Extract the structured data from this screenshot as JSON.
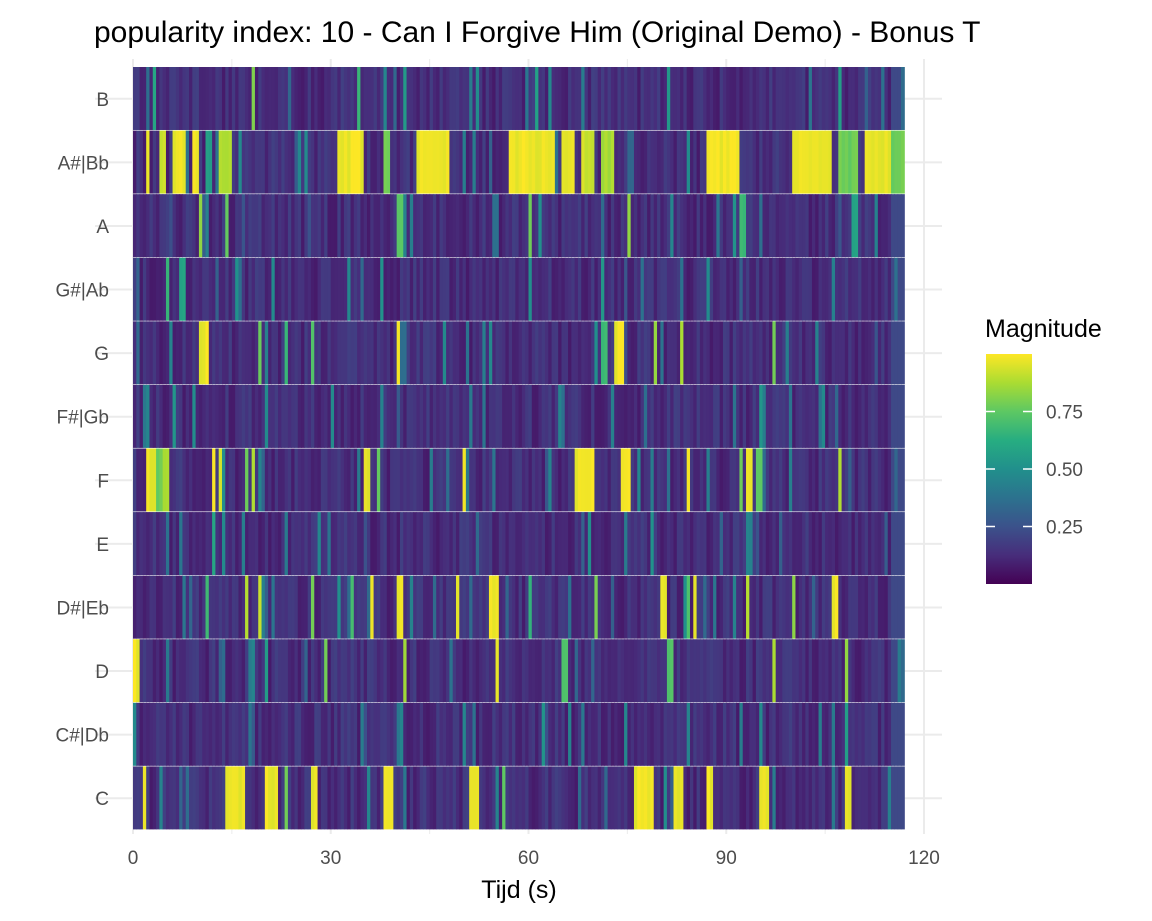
{
  "chart_data": {
    "type": "heatmap",
    "title": "popularity index:  10  -  Can I Forgive Him (Original Demo) - Bonus T",
    "xlabel": "Tijd (s)",
    "ylabel": "",
    "xlim": [
      0,
      117
    ],
    "x_axis_range": [
      0,
      120
    ],
    "x_ticks": [
      0,
      30,
      60,
      90,
      120
    ],
    "y_categories": [
      "C",
      "C#|Db",
      "D",
      "D#|Eb",
      "E",
      "F",
      "F#|Gb",
      "G",
      "G#|Ab",
      "A",
      "A#|Bb",
      "B"
    ],
    "grid": true,
    "legend": {
      "title": "Magnitude",
      "position": "right",
      "ticks": [
        0.25,
        0.5,
        0.75
      ],
      "tick_labels": [
        "0.25",
        "0.50",
        "0.75"
      ],
      "range": [
        0,
        1
      ]
    },
    "colors": {
      "low": "#440154",
      "mid": "#21908C",
      "high": "#FDE725",
      "grid": "#ebebeb",
      "background": "#ffffff"
    },
    "time_step_seconds": 0.5,
    "base_level": 0.07,
    "end_fade": {
      "start": 115,
      "end": 117
    },
    "high_segments": {
      "B": [
        [
          3,
          3.5,
          0.6
        ],
        [
          18,
          18.5,
          0.85
        ],
        [
          34,
          34.5,
          0.7
        ],
        [
          41,
          41.5,
          0.55
        ],
        [
          61,
          61.5,
          0.6
        ],
        [
          81,
          81.5,
          0.55
        ],
        [
          107,
          107.5,
          0.6
        ]
      ],
      "A#|Bb": [
        [
          2,
          2.5,
          1
        ],
        [
          4,
          5,
          0.95
        ],
        [
          6,
          8,
          1
        ],
        [
          9,
          10,
          1
        ],
        [
          11,
          12,
          0.6
        ],
        [
          13,
          15,
          0.9
        ],
        [
          31,
          35,
          1
        ],
        [
          38,
          39,
          0.8
        ],
        [
          43,
          48,
          1
        ],
        [
          57,
          64,
          1
        ],
        [
          65,
          67,
          1
        ],
        [
          68,
          70,
          0.95
        ],
        [
          71,
          73,
          0.9
        ],
        [
          87,
          92,
          1
        ],
        [
          100,
          106,
          1
        ],
        [
          107,
          110,
          0.8
        ],
        [
          111,
          115,
          1
        ],
        [
          115,
          117,
          0.8
        ]
      ],
      "A": [
        [
          10,
          10.5,
          0.85
        ],
        [
          14,
          14.5,
          0.8
        ],
        [
          40,
          41,
          0.75
        ],
        [
          60,
          60.5,
          0.8
        ],
        [
          75,
          75.5,
          0.85
        ],
        [
          92,
          93,
          0.7
        ],
        [
          109,
          110,
          0.6
        ]
      ],
      "G#|Ab": [
        [
          5,
          5.5,
          0.7
        ],
        [
          7,
          8,
          0.6
        ],
        [
          21,
          21.5,
          0.5
        ],
        [
          60,
          60.5,
          0.5
        ],
        [
          71,
          71.5,
          0.55
        ],
        [
          87,
          87.5,
          0.5
        ]
      ],
      "G": [
        [
          10,
          11.5,
          1
        ],
        [
          19,
          19.5,
          0.8
        ],
        [
          23,
          23.5,
          0.7
        ],
        [
          27,
          27.5,
          0.75
        ],
        [
          40,
          40.5,
          1
        ],
        [
          71,
          72,
          0.7
        ],
        [
          73,
          74.5,
          1
        ],
        [
          79,
          79.5,
          0.85
        ],
        [
          83,
          83.5,
          0.9
        ],
        [
          97,
          97.5,
          0.8
        ]
      ],
      "F#|Gb": [
        [
          2,
          2.5,
          0.5
        ],
        [
          6,
          6.5,
          0.55
        ],
        [
          20,
          20.5,
          0.5
        ],
        [
          30,
          30.5,
          0.5
        ],
        [
          51,
          51.5,
          0.45
        ],
        [
          95,
          95.5,
          0.55
        ]
      ],
      "F": [
        [
          2,
          3.5,
          1
        ],
        [
          3.5,
          4.5,
          0.8
        ],
        [
          4.5,
          5.5,
          0.9
        ],
        [
          12,
          12.5,
          1
        ],
        [
          13,
          13.5,
          0.95
        ],
        [
          17,
          17.5,
          0.8
        ],
        [
          18,
          18.5,
          0.9
        ],
        [
          35,
          36,
          1
        ],
        [
          37,
          37.5,
          0.8
        ],
        [
          50,
          50.5,
          1
        ],
        [
          67,
          70,
          1
        ],
        [
          74,
          75.5,
          1
        ],
        [
          84,
          84.5,
          1
        ],
        [
          92,
          92.5,
          0.8
        ],
        [
          93,
          94,
          1
        ],
        [
          94.5,
          95.5,
          0.8
        ],
        [
          107,
          107.5,
          0.9
        ]
      ],
      "E": [
        [
          12,
          12.5,
          0.6
        ],
        [
          28,
          28.5,
          0.5
        ],
        [
          93,
          93.5,
          0.5
        ]
      ],
      "D#|Eb": [
        [
          11,
          11.5,
          0.7
        ],
        [
          17,
          17.5,
          0.9
        ],
        [
          19,
          19.5,
          0.95
        ],
        [
          27,
          27.5,
          0.8
        ],
        [
          33,
          33.5,
          0.7
        ],
        [
          36,
          36.5,
          1
        ],
        [
          40,
          41,
          1
        ],
        [
          49,
          49.5,
          1
        ],
        [
          54,
          55.5,
          1
        ],
        [
          60,
          60.5,
          0.7
        ],
        [
          70,
          70.5,
          0.8
        ],
        [
          80,
          81,
          1
        ],
        [
          84,
          84.5,
          0.75
        ],
        [
          85,
          85.5,
          1
        ],
        [
          93,
          93.5,
          0.9
        ],
        [
          100,
          100.5,
          0.85
        ],
        [
          106,
          107,
          1
        ]
      ],
      "D": [
        [
          0,
          1,
          1
        ],
        [
          20,
          20.5,
          0.6
        ],
        [
          29,
          29.5,
          0.8
        ],
        [
          41,
          41.5,
          0.9
        ],
        [
          55,
          55.5,
          1
        ],
        [
          65,
          66,
          0.75
        ],
        [
          81,
          82,
          0.75
        ],
        [
          97,
          97.5,
          0.9
        ],
        [
          108,
          108.5,
          0.85
        ]
      ],
      "C#|Db": [
        [
          0,
          0.5,
          0.5
        ],
        [
          50,
          50.5,
          0.5
        ],
        [
          62,
          62.5,
          0.55
        ],
        [
          95,
          95.5,
          0.5
        ],
        [
          108,
          108.5,
          0.6
        ]
      ],
      "C": [
        [
          1.5,
          2,
          1
        ],
        [
          14,
          17,
          1
        ],
        [
          20,
          22,
          1
        ],
        [
          23,
          23.5,
          0.8
        ],
        [
          27,
          28,
          1
        ],
        [
          38,
          39.5,
          1
        ],
        [
          51,
          52.5,
          1
        ],
        [
          56,
          56.5,
          0.8
        ],
        [
          76,
          79,
          1
        ],
        [
          82,
          83.5,
          1
        ],
        [
          87,
          88,
          1
        ],
        [
          95,
          96.5,
          1
        ],
        [
          108,
          109,
          1
        ]
      ]
    }
  }
}
